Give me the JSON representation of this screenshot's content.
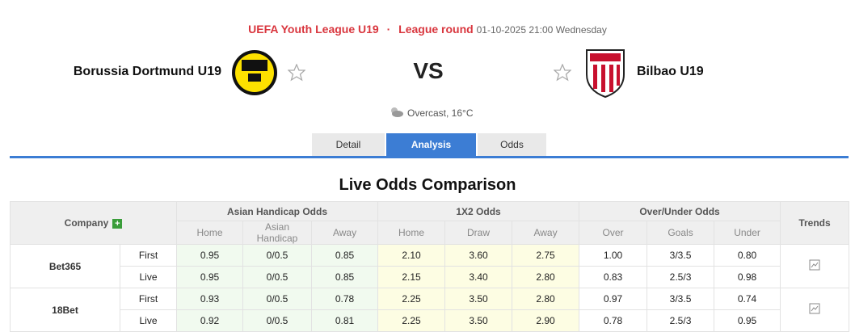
{
  "header": {
    "competition": "UEFA Youth League U19",
    "separator": "·",
    "round": "League round",
    "datetime": "01-10-2025 21:00 Wednesday"
  },
  "match": {
    "home": "Borussia Dortmund U19",
    "vs": "VS",
    "away": "Bilbao U19",
    "weather": "Overcast, 16°C"
  },
  "tabs": [
    "Detail",
    "Analysis",
    "Odds"
  ],
  "section_title": "Live Odds Comparison",
  "table": {
    "company_header": "Company",
    "groups": [
      "Asian Handicap Odds",
      "1X2 Odds",
      "Over/Under Odds"
    ],
    "trends_header": "Trends",
    "subheaders": [
      "Home",
      "Asian Handicap",
      "Away",
      "Home",
      "Draw",
      "Away",
      "Over",
      "Goals",
      "Under"
    ],
    "companies": [
      {
        "name": "Bet365",
        "rows": [
          {
            "type": "First",
            "odds": [
              "0.95",
              "0/0.5",
              "0.85",
              "2.10",
              "3.60",
              "2.75",
              "1.00",
              "3/3.5",
              "0.80"
            ]
          },
          {
            "type": "Live",
            "odds": [
              "0.95",
              "0/0.5",
              "0.85",
              "2.15",
              "3.40",
              "2.80",
              "0.83",
              "2.5/3",
              "0.98"
            ]
          }
        ]
      },
      {
        "name": "18Bet",
        "rows": [
          {
            "type": "First",
            "odds": [
              "0.93",
              "0/0.5",
              "0.78",
              "2.25",
              "3.50",
              "2.80",
              "0.97",
              "3/3.5",
              "0.74"
            ]
          },
          {
            "type": "Live",
            "odds": [
              "0.92",
              "0/0.5",
              "0.81",
              "2.25",
              "3.50",
              "2.90",
              "0.78",
              "2.5/3",
              "0.95"
            ]
          }
        ]
      }
    ]
  }
}
